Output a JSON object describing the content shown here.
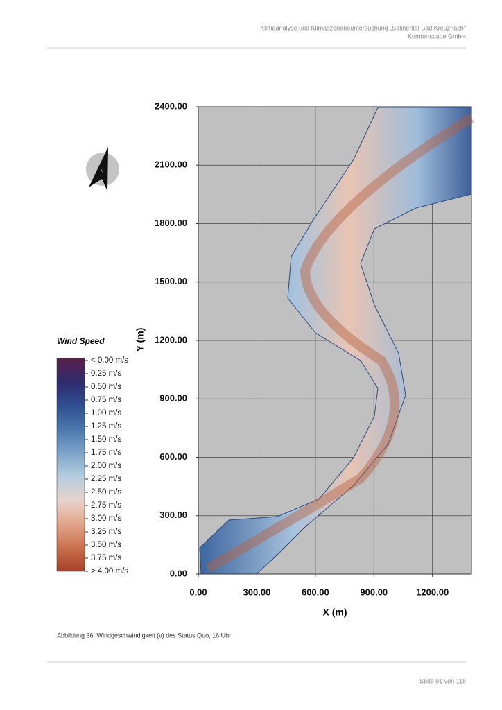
{
  "header": {
    "line1": "Klimaanalyse und Klimaszenariountersuchung „Salinental Bad Kreuznach\"",
    "line2": "Komfortscape GmbH"
  },
  "figure": {
    "xlabel": "X (m)",
    "ylabel": "Y (m)",
    "xlim": [
      0,
      1400
    ],
    "ylim": [
      0,
      2400
    ],
    "xticks": [
      {
        "value": 0,
        "label": "0.00"
      },
      {
        "value": 300,
        "label": "300.00"
      },
      {
        "value": 600,
        "label": "600.00"
      },
      {
        "value": 900,
        "label": "900.00"
      },
      {
        "value": 1200,
        "label": "1200.00"
      }
    ],
    "yticks": [
      {
        "value": 0,
        "label": "0.00"
      },
      {
        "value": 300,
        "label": "300.00"
      },
      {
        "value": 600,
        "label": "600.00"
      },
      {
        "value": 900,
        "label": "900.00"
      },
      {
        "value": 1200,
        "label": "1200.00"
      },
      {
        "value": 1500,
        "label": "1500.00"
      },
      {
        "value": 1800,
        "label": "1800.00"
      },
      {
        "value": 2100,
        "label": "2100.00"
      },
      {
        "value": 2400,
        "label": "2400.00"
      }
    ],
    "grid": true,
    "legend": {
      "title": "Wind Speed",
      "labels": [
        "< 0.00 m/s",
        "0.25  m/s",
        "0.50  m/s",
        "0.75  m/s",
        "1.00  m/s",
        "1.25  m/s",
        "1.50  m/s",
        "1.75  m/s",
        "2.00  m/s",
        "2.25  m/s",
        "2.50  m/s",
        "2.75  m/s",
        "3.00  m/s",
        "3.25  m/s",
        "3.50  m/s",
        "3.75  m/s",
        "> 4.00 m/s"
      ],
      "colors": [
        "#5a1f4a",
        "#2f2b6e",
        "#2f4f8f",
        "#4a78ad",
        "#7ea4c9",
        "#b6cde0",
        "#e6d3cc",
        "#e2a58a",
        "#c9714f",
        "#a6402a"
      ]
    }
  },
  "caption": "Abbildung 36: Windgeschwindigkeit (v) des Status Quo, 16 Uhr",
  "footer": "Seite 91 von 118"
}
